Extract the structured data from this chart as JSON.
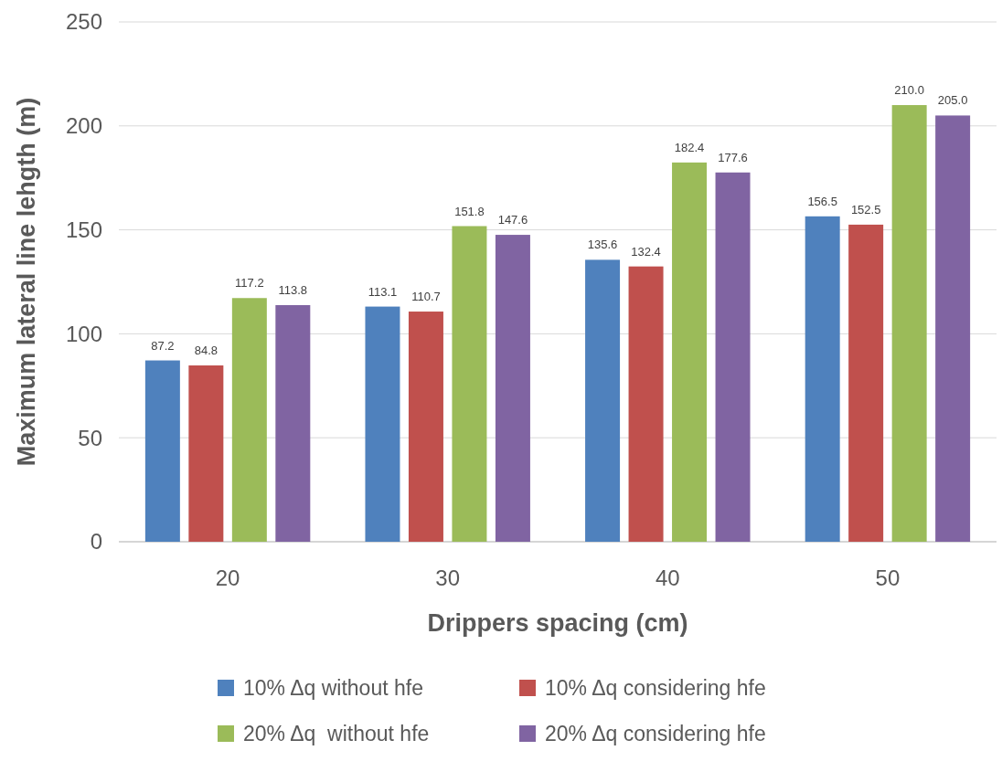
{
  "chart_data": {
    "type": "bar",
    "xlabel": "Drippers spacing (cm)",
    "ylabel": "Maximum lateral line lehgth (m)",
    "categories": [
      "20",
      "30",
      "40",
      "50"
    ],
    "series": [
      {
        "name": "10% Δq without hfe",
        "color": "#4f81bd",
        "values": [
          87.2,
          113.1,
          135.6,
          156.5
        ],
        "value_labels": [
          "87.2",
          "113.1",
          "135.6",
          "156.5"
        ]
      },
      {
        "name": "10% Δq considering hfe",
        "color": "#c0504d",
        "values": [
          84.8,
          110.7,
          132.4,
          152.5
        ],
        "value_labels": [
          "84.8",
          "110.7",
          "132.4",
          "152.5"
        ]
      },
      {
        "name": "20% Δq  without hfe",
        "color": "#9bbb59",
        "values": [
          117.2,
          151.8,
          182.4,
          210.0
        ],
        "value_labels": [
          "117.2",
          "151.8",
          "182.4",
          "210.0"
        ]
      },
      {
        "name": "20% Δq considering hfe",
        "color": "#8064a2",
        "values": [
          113.8,
          147.6,
          177.6,
          205.0
        ],
        "value_labels": [
          "113.8",
          "147.6",
          "177.6",
          "205.0"
        ]
      }
    ],
    "ylim": [
      0,
      250
    ],
    "yticks": [
      0,
      50,
      100,
      150,
      200,
      250
    ],
    "grid": "y",
    "legend": "bottom"
  }
}
